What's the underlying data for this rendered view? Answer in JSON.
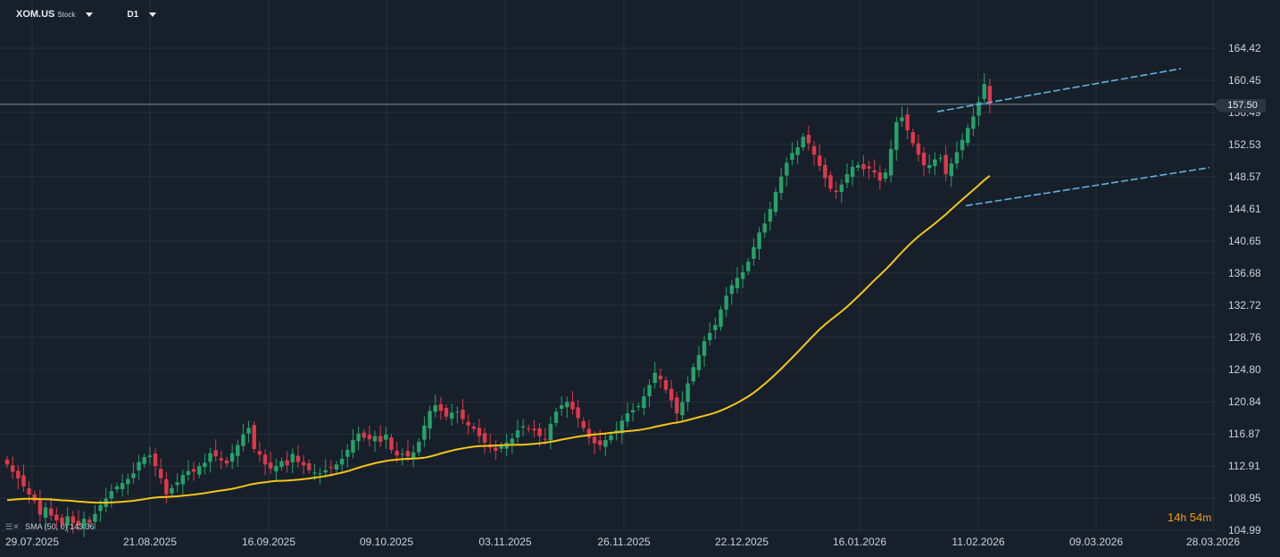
{
  "header": {
    "symbol": "XOM.US",
    "asset_type": "Stock",
    "timeframe": "D1"
  },
  "indicator": {
    "label": "SMA (50, 0) 143.36"
  },
  "countdown": {
    "hours": "14",
    "h_unit": "h",
    "minutes": "54",
    "m_unit": "m"
  },
  "colors": {
    "background": "#17202a",
    "up": "#26a269",
    "down": "#e0384a",
    "sma": "#f5c518",
    "channel": "#5fb3e0",
    "grid": "#24303b"
  },
  "chart_data": {
    "type": "candlestick",
    "y_ticks": [
      "164.42",
      "160.45",
      "156.49",
      "152.53",
      "148.57",
      "144.61",
      "140.65",
      "136.68",
      "132.72",
      "128.76",
      "124.80",
      "120.84",
      "116.87",
      "112.91",
      "108.95",
      "104.99"
    ],
    "ylim": [
      104.99,
      164.42
    ],
    "x_ticks": [
      "29.07.2025",
      "21.08.2025",
      "16.09.2025",
      "09.10.2025",
      "03.11.2025",
      "26.11.2025",
      "22.12.2025",
      "16.01.2026",
      "11.02.2026",
      "09.03.2026",
      "28.03.2026"
    ],
    "current_price": "157.50",
    "closes": [
      113.1,
      112.2,
      111.4,
      110.4,
      109.4,
      108.6,
      106.9,
      107.8,
      106.8,
      106.2,
      105.8,
      106.7,
      105.9,
      105.6,
      106.4,
      105.9,
      107.0,
      108.1,
      108.9,
      109.8,
      110.4,
      110.8,
      111.3,
      112.0,
      113.4,
      114.0,
      114.2,
      112.9,
      111.4,
      109.4,
      110.2,
      110.9,
      111.8,
      112.3,
      112.2,
      112.9,
      113.3,
      114.5,
      114.1,
      113.6,
      113.2,
      114.5,
      115.5,
      116.8,
      117.6,
      115.0,
      114.3,
      113.1,
      112.6,
      112.9,
      113.5,
      113.0,
      114.4,
      113.4,
      113.0,
      112.4,
      112.1,
      112.0,
      112.4,
      112.7,
      113.1,
      113.8,
      114.9,
      116.1,
      116.9,
      116.4,
      116.2,
      116.6,
      115.9,
      116.8,
      114.9,
      114.2,
      114.4,
      114.1,
      114.6,
      115.9,
      117.9,
      119.7,
      120.4,
      119.7,
      119.0,
      119.5,
      119.6,
      118.7,
      117.9,
      117.5,
      116.6,
      115.8,
      115.2,
      114.8,
      115.4,
      115.8,
      116.3,
      117.3,
      117.8,
      117.5,
      117.3,
      116.6,
      116.2,
      118.1,
      119.6,
      120.4,
      120.8,
      119.9,
      118.8,
      117.6,
      116.4,
      115.7,
      115.5,
      116.1,
      116.7,
      117.3,
      118.5,
      119.4,
      119.8,
      120.3,
      121.5,
      122.9,
      124.4,
      123.6,
      122.3,
      121.0,
      119.4,
      120.8,
      123.1,
      125.1,
      126.6,
      128.3,
      129.3,
      130.3,
      132.2,
      133.9,
      135.2,
      136.1,
      136.8,
      138.1,
      139.9,
      141.7,
      142.8,
      144.6,
      146.7,
      148.6,
      150.3,
      151.5,
      152.2,
      153.5,
      152.7,
      151.3,
      149.9,
      148.4,
      147.1,
      146.7,
      147.6,
      148.9,
      149.8,
      150.0,
      149.5,
      149.6,
      149.1,
      148.1,
      149.1,
      152.0,
      155.3,
      155.9,
      154.3,
      152.7,
      151.3,
      150.0,
      150.0,
      150.7,
      150.9,
      148.9,
      150.2,
      151.6,
      153.1,
      154.6,
      156.0,
      157.8,
      160.0,
      157.5
    ]
  }
}
